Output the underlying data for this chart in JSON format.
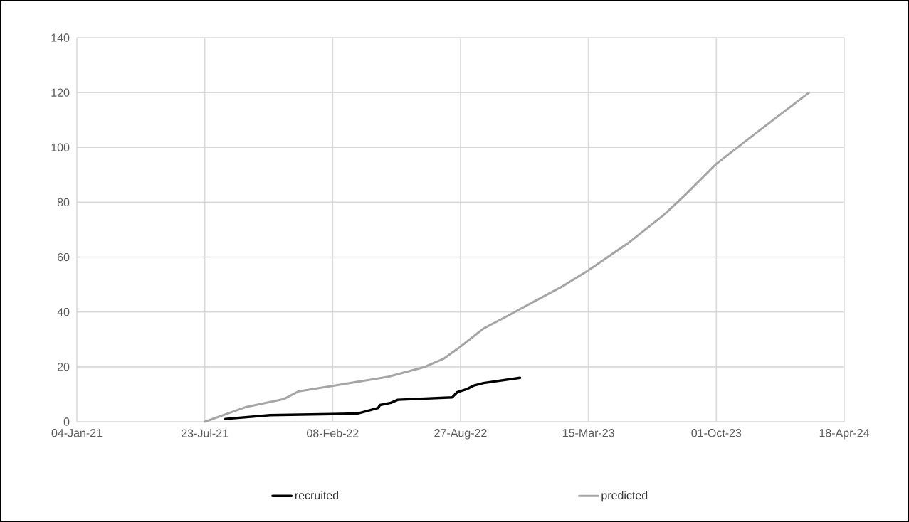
{
  "chart_data": {
    "type": "line",
    "xlim": [
      "2021-01-04",
      "2024-04-18"
    ],
    "xticks": [
      {
        "value": "2021-01-04",
        "label": "04-Jan-21"
      },
      {
        "value": "2021-07-23",
        "label": "23-Jul-21"
      },
      {
        "value": "2022-02-08",
        "label": "08-Feb-22"
      },
      {
        "value": "2022-08-27",
        "label": "27-Aug-22"
      },
      {
        "value": "2023-03-15",
        "label": "15-Mar-23"
      },
      {
        "value": "2023-10-01",
        "label": "01-Oct-23"
      },
      {
        "value": "2024-04-18",
        "label": "18-Apr-24"
      }
    ],
    "ylim": [
      0,
      140
    ],
    "yticks": [
      0,
      20,
      40,
      60,
      80,
      100,
      120,
      140
    ],
    "grid": true,
    "legend": "bottom",
    "marker": "none",
    "line_style": "solid",
    "series": [
      {
        "name": "recruited",
        "color": "#000000",
        "x": [
          "2021-08-24",
          "2021-11-02",
          "2022-02-07",
          "2022-03-19",
          "2022-04-03",
          "2022-04-20",
          "2022-04-23",
          "2022-05-10",
          "2022-05-21",
          "2022-08-14",
          "2022-08-22",
          "2022-09-06",
          "2022-09-17",
          "2022-10-02",
          "2022-11-28"
        ],
        "values": [
          1,
          2.4,
          2.8,
          3.0,
          3.9,
          5.0,
          6.1,
          6.9,
          8.0,
          8.9,
          10.8,
          11.9,
          13.2,
          14.1,
          16.0
        ]
      },
      {
        "name": "predicted",
        "color": "#a5a5a5",
        "x": [
          "2021-07-23",
          "2021-09-26",
          "2021-11-23",
          "2021-12-17",
          "2022-02-07",
          "2022-05-06",
          "2022-07-01",
          "2022-07-31",
          "2022-08-26",
          "2022-10-02",
          "2022-11-08",
          "2022-12-16",
          "2023-02-02",
          "2023-03-13",
          "2023-05-16",
          "2023-07-11",
          "2023-08-12",
          "2023-09-21",
          "2023-10-01",
          "2023-11-24",
          "2024-02-23"
        ],
        "values": [
          0,
          5.4,
          8.2,
          11.1,
          13.0,
          16.4,
          19.9,
          22.9,
          27.2,
          34.0,
          38.5,
          43.3,
          49.3,
          54.9,
          65.1,
          75.4,
          82.4,
          91.7,
          94,
          103.8,
          120
        ]
      }
    ]
  }
}
